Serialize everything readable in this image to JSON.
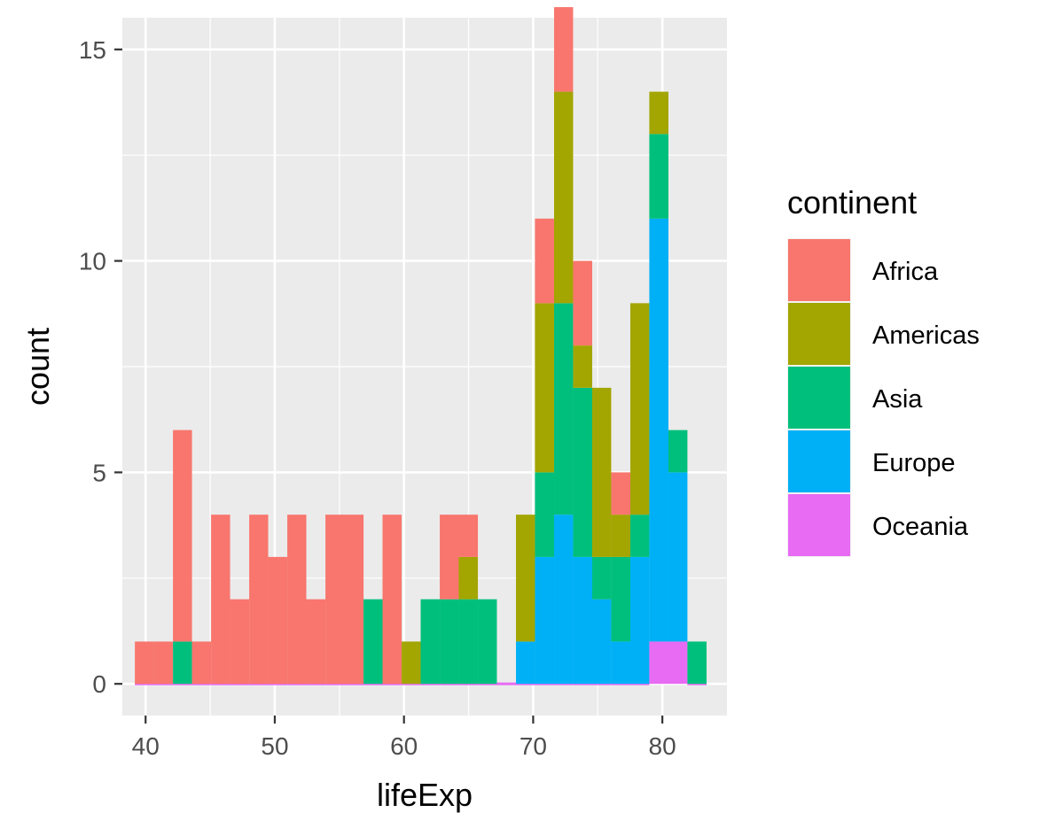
{
  "chart_data": {
    "type": "histogram",
    "xlabel": "lifeExp",
    "ylabel": "count",
    "xlim": [
      38.2,
      85.0
    ],
    "ylim": [
      -0.75,
      15.75
    ],
    "x_ticks": [
      40,
      50,
      60,
      70,
      80
    ],
    "y_ticks": [
      0,
      5,
      10,
      15
    ],
    "grid": true,
    "stacked": true,
    "legend": {
      "title": "continent",
      "position": "right"
    },
    "bin_edges": [
      39.17,
      40.64,
      42.12,
      43.59,
      45.07,
      46.54,
      48.02,
      49.49,
      50.97,
      52.44,
      53.92,
      55.39,
      56.87,
      58.34,
      59.82,
      61.29,
      62.77,
      64.24,
      65.72,
      67.19,
      68.67,
      70.14,
      71.62,
      73.09,
      74.57,
      76.04,
      77.52,
      78.99,
      80.47,
      81.94,
      83.42
    ],
    "series": [
      {
        "name": "Africa",
        "color": "#F8766D",
        "values": [
          1,
          1,
          5,
          1,
          4,
          2,
          4,
          3,
          4,
          2,
          4,
          4,
          0,
          4,
          0,
          0,
          2,
          1,
          0,
          0,
          0,
          2,
          2,
          2,
          0,
          1,
          0,
          0,
          0,
          0
        ]
      },
      {
        "name": "Americas",
        "color": "#A3A500",
        "values": [
          0,
          0,
          0,
          0,
          0,
          0,
          0,
          0,
          0,
          0,
          0,
          0,
          0,
          0,
          1,
          0,
          0,
          1,
          0,
          0,
          3,
          4,
          5,
          1,
          4,
          1,
          5,
          1,
          0,
          0
        ]
      },
      {
        "name": "Asia",
        "color": "#00BF7D",
        "values": [
          0,
          0,
          1,
          0,
          0,
          0,
          0,
          0,
          0,
          0,
          0,
          0,
          2,
          0,
          0,
          2,
          2,
          2,
          2,
          0,
          0,
          2,
          5,
          4,
          1,
          2,
          1,
          2,
          1,
          1
        ]
      },
      {
        "name": "Europe",
        "color": "#00B0F6",
        "values": [
          0,
          0,
          0,
          0,
          0,
          0,
          0,
          0,
          0,
          0,
          0,
          0,
          0,
          0,
          0,
          0,
          0,
          0,
          0,
          0,
          1,
          3,
          4,
          3,
          2,
          1,
          3,
          10,
          4,
          0
        ]
      },
      {
        "name": "Oceania",
        "color": "#E76BF3",
        "values": [
          0,
          0,
          0,
          0,
          0,
          0,
          0,
          0,
          0,
          0,
          0,
          0,
          0,
          0,
          0,
          0,
          0,
          0,
          0,
          0,
          0,
          0,
          0,
          0,
          0,
          0,
          0,
          1,
          1,
          0
        ]
      }
    ]
  }
}
